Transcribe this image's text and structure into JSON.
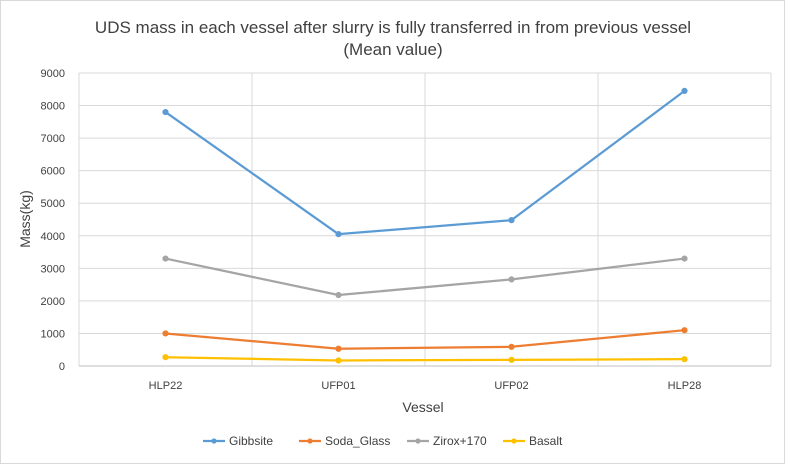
{
  "chart_data": {
    "type": "line",
    "title": "UDS mass in each vessel after slurry is fully transferred in from previous vessel",
    "subtitle": "(Mean value)",
    "xlabel": "Vessel",
    "ylabel": "Mass(kg)",
    "categories": [
      "HLP22",
      "UFP01",
      "UFP02",
      "HLP28"
    ],
    "ylim": [
      0,
      9000
    ],
    "yticks": [
      "0",
      "1000",
      "2000",
      "3000",
      "4000",
      "5000",
      "6000",
      "7000",
      "8000",
      "9000"
    ],
    "grid": true,
    "legend_position": "bottom",
    "series": [
      {
        "name": "Gibbsite",
        "color": "#5b9bd5",
        "values": [
          7800,
          4050,
          4480,
          8450
        ]
      },
      {
        "name": "Soda_Glass",
        "color": "#ed7d31",
        "values": [
          1000,
          530,
          590,
          1100
        ]
      },
      {
        "name": "Zirox+170",
        "color": "#a5a5a5",
        "values": [
          3300,
          2180,
          2660,
          3300
        ]
      },
      {
        "name": "Basalt",
        "color": "#ffc000",
        "values": [
          270,
          170,
          190,
          210
        ]
      }
    ]
  }
}
